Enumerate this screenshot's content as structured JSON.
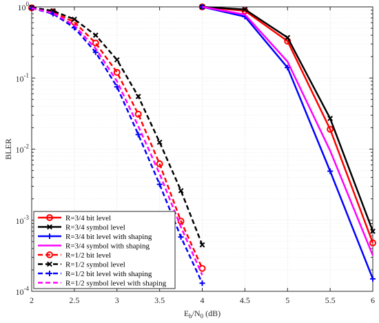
{
  "chart_data": {
    "type": "line",
    "title": "",
    "xlabel": {
      "main": "E",
      "sub1": "b",
      "mid": "/N",
      "sub2": "0",
      "unit": " (dB)"
    },
    "ylabel": "BLER",
    "xlim": [
      2,
      6
    ],
    "ylim": [
      0.0001,
      1
    ],
    "yscale": "log",
    "grid": true,
    "legend_position": "bottom-left",
    "xticks": [
      {
        "value": 2,
        "label": "2"
      },
      {
        "value": 2.5,
        "label": "2.5"
      },
      {
        "value": 3,
        "label": "3"
      },
      {
        "value": 3.5,
        "label": "3.5"
      },
      {
        "value": 4,
        "label": "4"
      },
      {
        "value": 4.5,
        "label": "4.5"
      },
      {
        "value": 5,
        "label": "5"
      },
      {
        "value": 5.5,
        "label": "5.5"
      },
      {
        "value": 6,
        "label": "6"
      }
    ],
    "yticks": [
      {
        "value": 0.0001,
        "base": "10",
        "exp": "-4"
      },
      {
        "value": 0.001,
        "base": "10",
        "exp": "-3"
      },
      {
        "value": 0.01,
        "base": "10",
        "exp": "-2"
      },
      {
        "value": 0.1,
        "base": "10",
        "exp": "-1"
      },
      {
        "value": 1,
        "base": "10",
        "exp": "0"
      }
    ],
    "series": [
      {
        "name": "R=3/4 bit level",
        "color": "#ff0000",
        "dash": "solid",
        "marker": "circle",
        "x": [
          4,
          4.5,
          5,
          5.5,
          6
        ],
        "y": [
          1,
          0.88,
          0.33,
          0.019,
          0.00048
        ]
      },
      {
        "name": "R=3/4 symbol level",
        "color": "#000000",
        "dash": "solid",
        "marker": "x",
        "x": [
          4,
          4.5,
          5,
          5.5,
          6
        ],
        "y": [
          1,
          0.92,
          0.37,
          0.027,
          0.0007
        ]
      },
      {
        "name": "R=3/4 bit level with shaping",
        "color": "#0000ff",
        "dash": "solid",
        "marker": "plus",
        "x": [
          4,
          4.5,
          5,
          5.5,
          6
        ],
        "y": [
          1,
          0.73,
          0.14,
          0.0049,
          0.00015
        ]
      },
      {
        "name": "R=3/4 symbol with shaping",
        "color": "#ff00ff",
        "dash": "solid",
        "marker": "none",
        "x": [
          4,
          4.5,
          5,
          5.5,
          6
        ],
        "y": [
          1,
          0.78,
          0.17,
          0.0095,
          0.00032
        ]
      },
      {
        "name": "R=1/2 bit level",
        "color": "#ff0000",
        "dash": "dashed",
        "marker": "circle",
        "x": [
          2,
          2.25,
          2.5,
          2.75,
          3,
          3.25,
          3.5,
          3.75,
          4
        ],
        "y": [
          0.97,
          0.85,
          0.61,
          0.31,
          0.12,
          0.031,
          0.0062,
          0.00097,
          0.00021
        ]
      },
      {
        "name": "R=1/2 symbol level",
        "color": "#000000",
        "dash": "dashed",
        "marker": "x",
        "x": [
          2,
          2.25,
          2.5,
          2.75,
          3,
          3.25,
          3.5,
          3.75,
          4
        ],
        "y": [
          0.98,
          0.88,
          0.67,
          0.4,
          0.18,
          0.055,
          0.0125,
          0.0026,
          0.00045
        ]
      },
      {
        "name": "R=1/2 bit level with shaping",
        "color": "#0000ff",
        "dash": "dashed",
        "marker": "plus",
        "x": [
          2,
          2.25,
          2.5,
          2.75,
          3,
          3.25,
          3.5,
          3.75,
          4
        ],
        "y": [
          0.96,
          0.8,
          0.51,
          0.23,
          0.075,
          0.016,
          0.0032,
          0.00058,
          0.00013
        ]
      },
      {
        "name": "R=1/2 symbol level with shaping",
        "color": "#ff00ff",
        "dash": "dashed",
        "marker": "none",
        "x": [
          2,
          2.25,
          2.5,
          2.75,
          3,
          3.25,
          3.5,
          3.75,
          4
        ],
        "y": [
          0.96,
          0.82,
          0.55,
          0.26,
          0.09,
          0.021,
          0.0045,
          0.0008,
          0.00017
        ]
      }
    ]
  }
}
